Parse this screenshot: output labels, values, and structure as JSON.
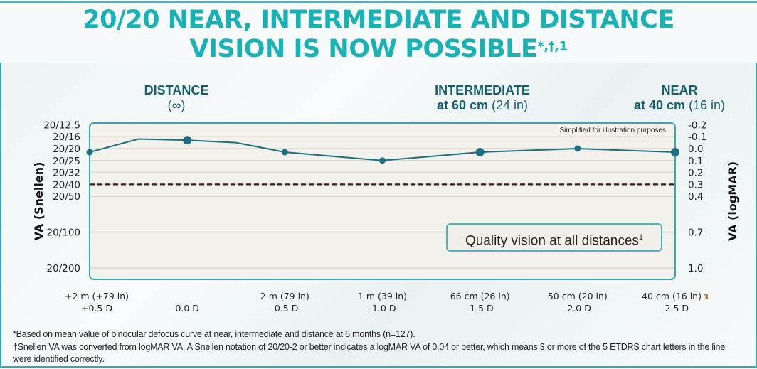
{
  "title": {
    "line1": "20/20 NEAR, INTERMEDIATE AND DISTANCE",
    "line2": "VISION IS NOW POSSIBLE",
    "line2_sup": "*,†,1"
  },
  "zones": [
    {
      "label": "DISTANCE",
      "sub_bold": "",
      "sub": "(∞)"
    },
    {
      "label": "INTERMEDIATE",
      "sub_bold": "at 60 cm",
      "sub": " (24 in)"
    },
    {
      "label": "NEAR",
      "sub_bold": "at 40 cm",
      "sub": " (16 in)"
    }
  ],
  "chart_data": {
    "type": "line",
    "ylabel_left": "VA (Snellen)",
    "ylabel_right": "VA (logMAR)",
    "ylim": [
      -0.2,
      1.05
    ],
    "y_inverted": true,
    "y_ticks_logmar": [
      -0.2,
      -0.1,
      0.0,
      0.1,
      0.2,
      0.3,
      0.4,
      0.7,
      1.0
    ],
    "y_ticks_logmar_labels": [
      "-0.2",
      "-0.1",
      "0.0",
      "0.1",
      "0.2",
      "0.3",
      "0.4",
      "0.7",
      "1.0"
    ],
    "y_ticks_snellen_labels": [
      "20/12.5",
      "20/16",
      "20/20",
      "20/25",
      "20/32",
      "20/40",
      "20/50",
      "20/100",
      "20/200"
    ],
    "xlim": [
      0.5,
      -2.5
    ],
    "x_ticks": [
      {
        "value": 0.5,
        "line1": "+2 m (+79 in)",
        "line2": "+0.5 D"
      },
      {
        "value": 0.0,
        "line1": "",
        "line2": "0.0 D"
      },
      {
        "value": -0.5,
        "line1": "2 m (79 in)",
        "line2": "-0.5 D"
      },
      {
        "value": -1.0,
        "line1": "1 m (39 in)",
        "line2": "-1.0 D"
      },
      {
        "value": -1.5,
        "line1": "66 cm (26 in)",
        "line2": "-1.5 D"
      },
      {
        "value": -2.0,
        "line1": "50 cm (20 in)",
        "line2": "-2.0 D"
      },
      {
        "value": -2.5,
        "line1": "40 cm (16 in)",
        "line2": "-2.5 D",
        "sup": "3"
      }
    ],
    "series": [
      {
        "x": [
          0.5,
          0.25,
          0.0,
          -0.25,
          -0.5,
          -1.0,
          -1.5,
          -2.0,
          -2.5
        ],
        "y": [
          0.03,
          -0.08,
          -0.07,
          -0.05,
          0.03,
          0.1,
          0.03,
          0.0,
          0.03
        ],
        "markers": [
          "small",
          "none",
          "large",
          "none",
          "small",
          "small",
          "large",
          "small",
          "large"
        ],
        "color": "#1b6f80"
      }
    ],
    "reference_line": {
      "y": 0.3,
      "style": "dashed",
      "color": "#3a1c1c"
    },
    "grid": true,
    "note": "Simplified for illustration purposes",
    "callout": "Quality vision at all distances",
    "callout_sup": "1"
  },
  "colors": {
    "title": "#19b2b4",
    "frame": "#3aa6b1",
    "plot_bg": "#f3f1ec",
    "grid": "#ddd6cb"
  },
  "footnotes": [
    "*Based on mean value of binocular defocus curve at near, intermediate and distance at 6 months (n=127).",
    "†Snellen VA was converted from logMAR VA. A Snellen notation of 20/20-2 or better indicates a logMAR VA of 0.04 or better, which means 3 or more of the 5 ETDRS chart letters in the line were identified correctly."
  ]
}
